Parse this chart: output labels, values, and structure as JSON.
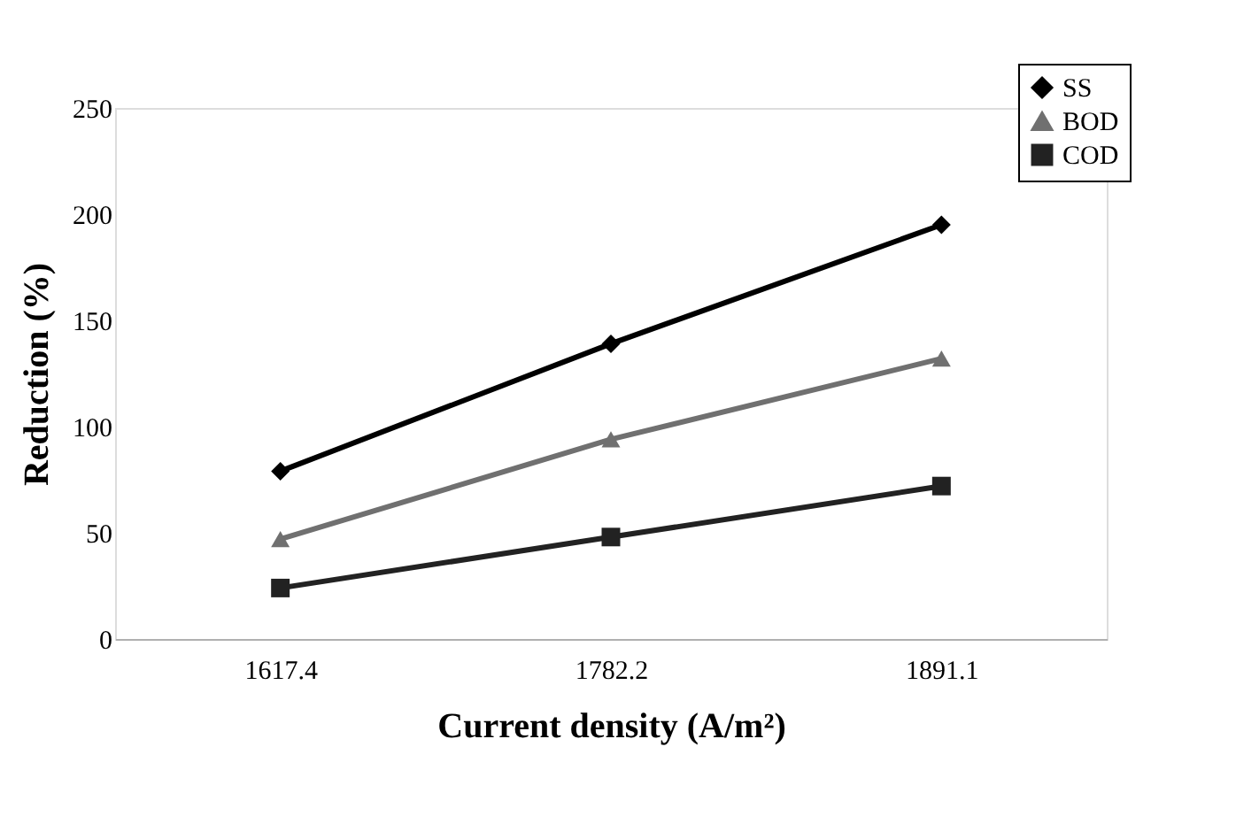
{
  "chart_data": {
    "type": "line",
    "xlabel": "Current density (A/m²)",
    "ylabel": "Reduction (%)",
    "categories": [
      "1617.4",
      "1782.2",
      "1891.1"
    ],
    "series": [
      {
        "name": "SS",
        "color": "#000000",
        "marker": "diamond",
        "values": [
          79,
          139,
          195
        ]
      },
      {
        "name": "BOD",
        "color": "#707070",
        "marker": "triangle",
        "values": [
          47,
          94,
          132
        ]
      },
      {
        "name": "COD",
        "color": "#222222",
        "marker": "square",
        "values": [
          24,
          48,
          72
        ]
      }
    ],
    "ylim": [
      0,
      250
    ],
    "yticks": [
      0,
      50,
      100,
      150,
      200,
      250
    ],
    "grid": false,
    "legend": "top right",
    "line_style": "solid"
  }
}
